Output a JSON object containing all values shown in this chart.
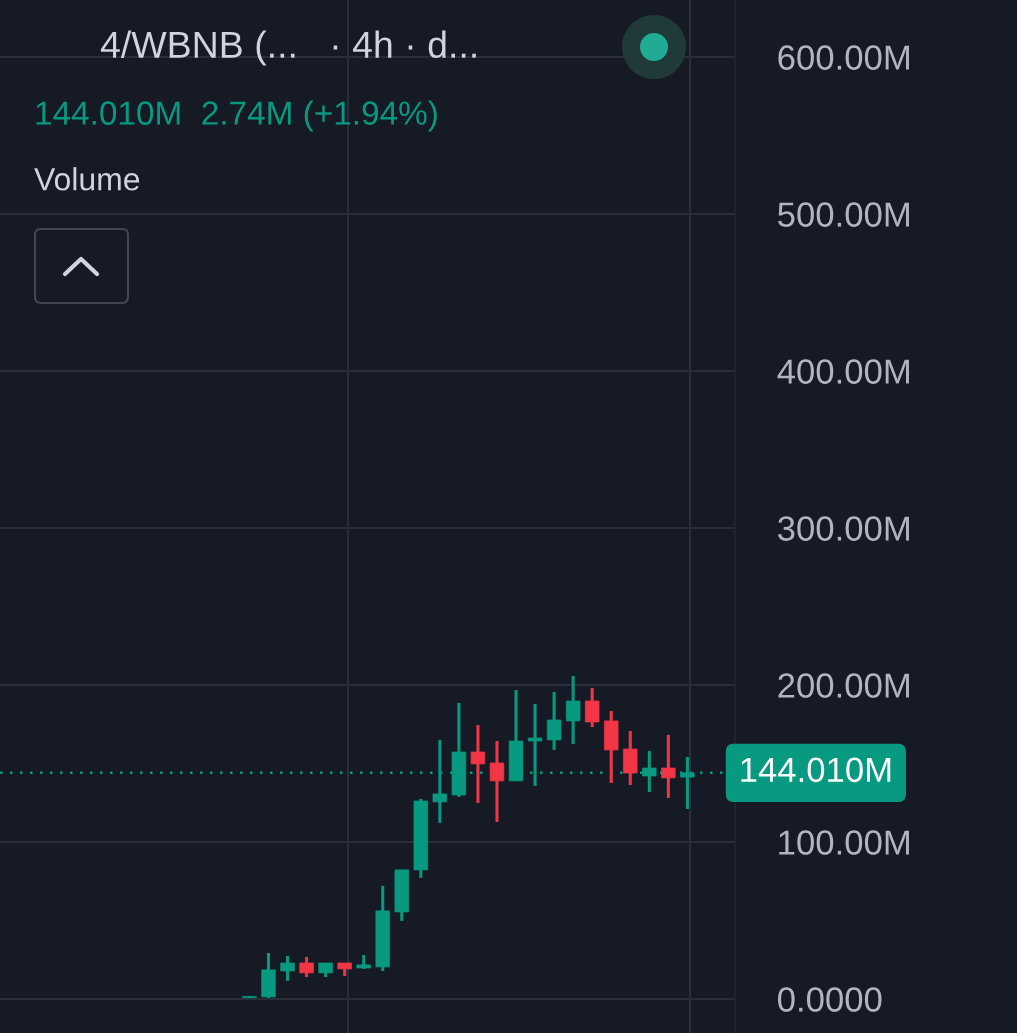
{
  "chart_data": {
    "type": "candlestick",
    "title": "4/WBNB (...   · 4h · d...",
    "subtitle": "144.010M  2.74M (+1.94%)",
    "annotations": [
      "Volume"
    ],
    "categories": [
      null,
      null,
      null,
      null,
      null,
      null,
      null,
      null,
      null,
      null,
      null,
      null,
      null,
      null,
      null,
      null,
      null,
      null,
      null,
      null,
      null,
      null,
      null,
      null
    ],
    "ohlc": [
      [
        0.8,
        1.8,
        0.6,
        1.6
      ],
      [
        1.3,
        29.3,
        0.6,
        18.5
      ],
      [
        17.8,
        27.4,
        11.5,
        22.9
      ],
      [
        22.9,
        26.8,
        14.0,
        16.6
      ],
      [
        16.6,
        22.9,
        14.0,
        22.9
      ],
      [
        22.9,
        22.9,
        14.6,
        19.1
      ],
      [
        19.7,
        28.0,
        19.1,
        21.7
      ],
      [
        20.4,
        72.0,
        17.8,
        56.1
      ],
      [
        55.4,
        82.2,
        49.7,
        82.2
      ],
      [
        82.2,
        127.4,
        77.1,
        126.1
      ],
      [
        125.5,
        165.0,
        112.1,
        130.6
      ],
      [
        129.9,
        188.5,
        128.7,
        157.3
      ],
      [
        157.3,
        174.5,
        124.8,
        149.7
      ],
      [
        150.3,
        164.3,
        112.7,
        138.9
      ],
      [
        138.9,
        196.8,
        138.9,
        164.3
      ],
      [
        164.3,
        187.9,
        135.7,
        166.2
      ],
      [
        165.0,
        195.5,
        158.6,
        177.7
      ],
      [
        177.1,
        205.7,
        162.4,
        189.8
      ],
      [
        189.8,
        198.1,
        173.2,
        176.4
      ],
      [
        177.1,
        183.4,
        137.6,
        158.6
      ],
      [
        159.2,
        170.7,
        136.3,
        143.9
      ],
      [
        142.0,
        158.0,
        131.8,
        147.1
      ],
      [
        147.1,
        168.2,
        128.0,
        140.8
      ],
      [
        141.3,
        154.1,
        121.0,
        144.01
      ]
    ],
    "colors": [
      "#089981",
      "#089981",
      "#089981",
      "#f23645",
      "#089981",
      "#f23645",
      "#089981",
      "#089981",
      "#089981",
      "#089981",
      "#089981",
      "#089981",
      "#f23645",
      "#f23645",
      "#089981",
      "#089981",
      "#089981",
      "#089981",
      "#f23645",
      "#f23645",
      "#f23645",
      "#089981",
      "#f23645",
      "#089981"
    ],
    "ylim": [
      -21.7,
      636.3
    ],
    "yticks": [
      {
        "value": 0,
        "label": "0.0000"
      },
      {
        "value": 100,
        "label": "100.00M"
      },
      {
        "value": 200,
        "label": "200.00M"
      },
      {
        "value": 300,
        "label": "300.00M"
      },
      {
        "value": 400,
        "label": "400.00M"
      },
      {
        "value": 500,
        "label": "500.00M"
      },
      {
        "value": 600,
        "label": "600.00M"
      }
    ],
    "grid": "y",
    "ref_lines": [
      {
        "axis": "y",
        "value": 144.01,
        "label": "144.010M",
        "color": "#089981",
        "line_style": "dotted"
      }
    ]
  }
}
